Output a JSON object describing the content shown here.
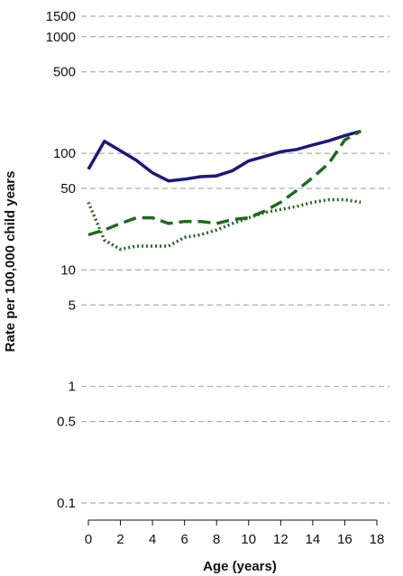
{
  "chart_data": {
    "type": "line",
    "title": "",
    "xlabel": "Age (years)",
    "ylabel": "Rate per 100,000 child years",
    "yscale": "log",
    "xlim": [
      0,
      18
    ],
    "ylim": [
      0.1,
      1500
    ],
    "xticks": [
      0,
      2,
      4,
      6,
      8,
      10,
      12,
      14,
      16,
      18
    ],
    "yticks": [
      0.1,
      0.5,
      1,
      5,
      10,
      50,
      100,
      500,
      1000,
      1500
    ],
    "ytick_labels": [
      "0.1",
      "0.5",
      "1",
      "5",
      "10",
      "50",
      "100",
      "500",
      "1000",
      "1500"
    ],
    "grid": "horizontal dashed",
    "legend": "none",
    "x": [
      0,
      1,
      2,
      3,
      4,
      5,
      6,
      7,
      8,
      9,
      10,
      11,
      12,
      13,
      14,
      15,
      16,
      17
    ],
    "series": [
      {
        "style": "solid",
        "color": "#1a1a7a",
        "values": [
          73,
          127,
          105,
          87,
          68,
          58,
          60,
          63,
          64,
          71,
          86,
          94,
          103,
          108,
          118,
          128,
          142,
          155
        ]
      },
      {
        "style": "dashed",
        "color": "#1e6b1e",
        "values": [
          20,
          22,
          25,
          28,
          28,
          25,
          26,
          26,
          25,
          27,
          28,
          32,
          38,
          48,
          62,
          82,
          130,
          155
        ]
      },
      {
        "style": "dotted",
        "color": "#1e6b1e",
        "values": [
          38,
          18,
          15,
          16,
          16,
          16,
          19,
          20,
          22,
          25,
          28,
          31,
          33,
          35,
          38,
          40,
          40,
          38
        ]
      }
    ]
  }
}
